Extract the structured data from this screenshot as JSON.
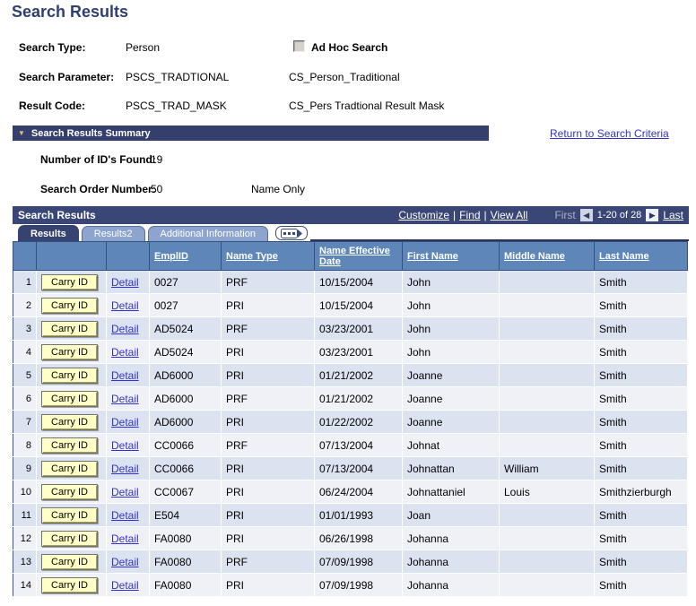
{
  "page": {
    "title": "Search Results"
  },
  "icons": {
    "collapse": "▼",
    "prev": "◀",
    "next": "▶"
  },
  "criteria": {
    "search_type": {
      "label": "Search Type:",
      "value": "Person"
    },
    "ad_hoc": {
      "label": "Ad Hoc Search",
      "checked": false
    },
    "search_parameter": {
      "label": "Search Parameter:",
      "value": "PSCS_TRADTIONAL",
      "description": "CS_Person_Traditional"
    },
    "result_code": {
      "label": "Result Code:",
      "value": "PSCS_TRAD_MASK",
      "description": "CS_Pers Tradtional Result Mask"
    }
  },
  "summary": {
    "title": "Search Results Summary",
    "return_link": "Return to Search Criteria",
    "ids_found": {
      "label": "Number of ID's Found:",
      "value": "19"
    },
    "search_order": {
      "label": "Search Order Number:",
      "value": "50",
      "description": "Name Only"
    }
  },
  "grid": {
    "title": "Search Results",
    "toolbar_links": [
      "Customize",
      "Find",
      "View All"
    ],
    "link_separator": "|",
    "pager": {
      "first_label": "First",
      "range_label": "1-20 of 28",
      "last_label": "Last"
    },
    "tabs": [
      {
        "label": "Results",
        "active": true
      },
      {
        "label": "Results2",
        "active": false
      },
      {
        "label": "Additional Information",
        "active": false
      }
    ],
    "row_button_label": "Carry ID",
    "row_link_label": "Detail",
    "columns": [
      "EmplID",
      "Name Type",
      "Name Effective Date",
      "First Name",
      "Middle Name",
      "Last Name"
    ],
    "rows": [
      {
        "num": "1",
        "emplid": "0027",
        "name_type": "PRF",
        "name_effective_date": "10/15/2004",
        "first_name": "John",
        "middle_name": "",
        "last_name": "Smith"
      },
      {
        "num": "2",
        "emplid": "0027",
        "name_type": "PRI",
        "name_effective_date": "10/15/2004",
        "first_name": "John",
        "middle_name": "",
        "last_name": "Smith"
      },
      {
        "num": "3",
        "emplid": "AD5024",
        "name_type": "PRF",
        "name_effective_date": "03/23/2001",
        "first_name": "John",
        "middle_name": "",
        "last_name": "Smith"
      },
      {
        "num": "4",
        "emplid": "AD5024",
        "name_type": "PRI",
        "name_effective_date": "03/23/2001",
        "first_name": "John",
        "middle_name": "",
        "last_name": "Smith"
      },
      {
        "num": "5",
        "emplid": "AD6000",
        "name_type": "PRI",
        "name_effective_date": "01/21/2002",
        "first_name": "Joanne",
        "middle_name": "",
        "last_name": "Smith"
      },
      {
        "num": "6",
        "emplid": "AD6000",
        "name_type": "PRF",
        "name_effective_date": "01/21/2002",
        "first_name": "Joanne",
        "middle_name": "",
        "last_name": "Smith"
      },
      {
        "num": "7",
        "emplid": "AD6000",
        "name_type": "PRI",
        "name_effective_date": "01/22/2002",
        "first_name": "Joanne",
        "middle_name": "",
        "last_name": "Smith"
      },
      {
        "num": "8",
        "emplid": "CC0066",
        "name_type": "PRF",
        "name_effective_date": "07/13/2004",
        "first_name": "Johnat",
        "middle_name": "",
        "last_name": "Smith"
      },
      {
        "num": "9",
        "emplid": "CC0066",
        "name_type": "PRI",
        "name_effective_date": "07/13/2004",
        "first_name": "Johnattan",
        "middle_name": "William",
        "last_name": "Smith"
      },
      {
        "num": "10",
        "emplid": "CC0067",
        "name_type": "PRI",
        "name_effective_date": "06/24/2004",
        "first_name": "Johnattaniel",
        "middle_name": "Louis",
        "last_name": "Smithzierburgh"
      },
      {
        "num": "11",
        "emplid": "E504",
        "name_type": "PRI",
        "name_effective_date": "01/01/1993",
        "first_name": "Joan",
        "middle_name": "",
        "last_name": "Smith"
      },
      {
        "num": "12",
        "emplid": "FA0080",
        "name_type": "PRI",
        "name_effective_date": "06/26/1998",
        "first_name": "Johanna",
        "middle_name": "",
        "last_name": "Smith"
      },
      {
        "num": "13",
        "emplid": "FA0080",
        "name_type": "PRF",
        "name_effective_date": "07/09/1998",
        "first_name": "Johanna",
        "middle_name": "",
        "last_name": "Smith"
      },
      {
        "num": "14",
        "emplid": "FA0080",
        "name_type": "PRI",
        "name_effective_date": "07/09/1998",
        "first_name": "Johanna",
        "middle_name": "",
        "last_name": "Smith"
      }
    ]
  },
  "colors": {
    "title_text": "#2E4072",
    "section_bar": "#343F6E",
    "grid_bar": "#3A4676",
    "column_header": "#5E86B8",
    "row_odd": "#DCE3F0",
    "row_even": "#F0F1F7",
    "link_blue": "#3333CC",
    "button_yellow": "#FFFFC6",
    "inactive_tab": "#8CA4CE"
  }
}
